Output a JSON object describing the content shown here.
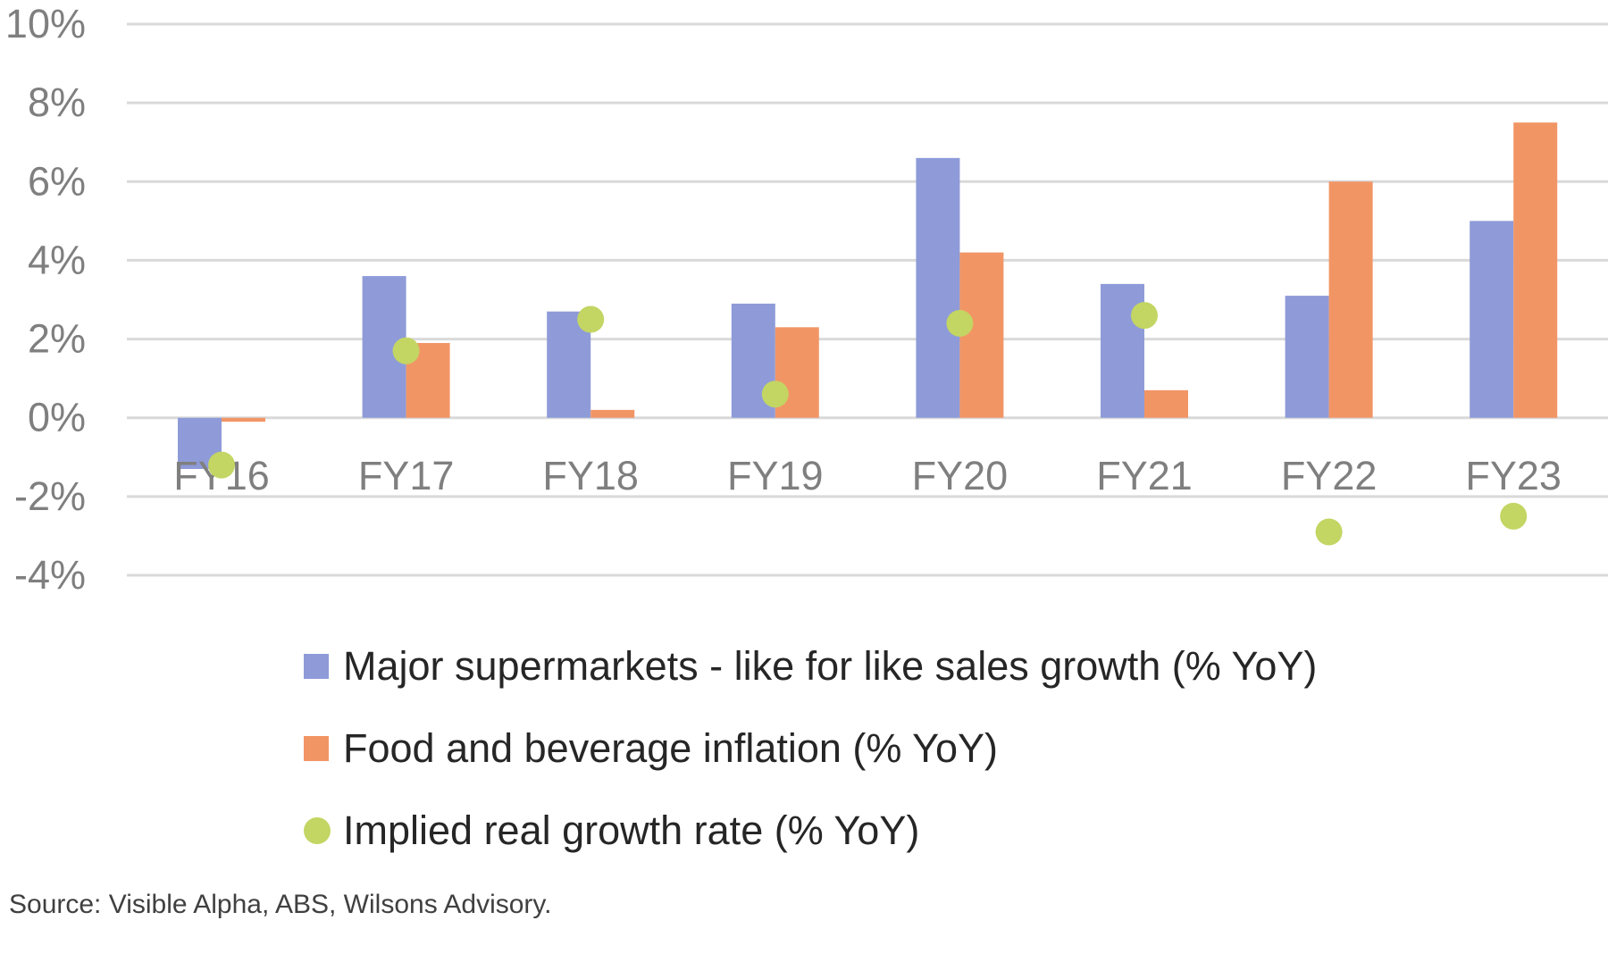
{
  "chart_data": {
    "type": "bar",
    "categories": [
      "FY16",
      "FY17",
      "FY18",
      "FY19",
      "FY20",
      "FY21",
      "FY22",
      "FY23"
    ],
    "series": [
      {
        "name": "Major supermarkets - like for like sales growth (% YoY)",
        "kind": "bar",
        "color": "#8e9bd8",
        "values": [
          -1.3,
          3.6,
          2.7,
          2.9,
          6.6,
          3.4,
          3.1,
          5.0
        ]
      },
      {
        "name": "Food and beverage inflation (% YoY)",
        "kind": "bar",
        "color": "#f29565",
        "values": [
          -0.1,
          1.9,
          0.2,
          2.3,
          4.2,
          0.7,
          6.0,
          7.5
        ]
      },
      {
        "name": "Implied real growth rate (% YoY)",
        "kind": "scatter",
        "color": "#c3d563",
        "values": [
          -1.2,
          1.7,
          2.5,
          0.6,
          2.4,
          2.6,
          -2.9,
          -2.5
        ]
      }
    ],
    "y_ticks": [
      "10%",
      "8%",
      "6%",
      "4%",
      "2%",
      "0%",
      "-2%",
      "-4%"
    ],
    "ylim": [
      -4,
      10
    ],
    "grid": true,
    "legend_position": "bottom",
    "source": "Source: Visible Alpha, ABS, Wilsons Advisory."
  }
}
